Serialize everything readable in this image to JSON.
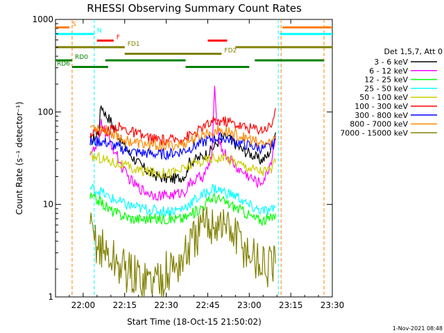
{
  "chart_data": {
    "type": "line",
    "title": "RHESSI Observing Summary Count Rates",
    "xlabel": "Start Time (18-Oct-15 21:50:02)",
    "ylabel": "Count Rate (s⁻¹ detector⁻¹)",
    "yscale": "log",
    "ylim": [
      1,
      1000
    ],
    "xlim_minutes": [
      0,
      100
    ],
    "x_ticks": [
      {
        "m": 10,
        "label": "22:00"
      },
      {
        "m": 25,
        "label": "22:15"
      },
      {
        "m": 40,
        "label": "22:30"
      },
      {
        "m": 55,
        "label": "22:45"
      },
      {
        "m": 70,
        "label": "23:00"
      },
      {
        "m": 85,
        "label": "23:15"
      },
      {
        "m": 100,
        "label": "23:30"
      }
    ],
    "y_ticks": [
      {
        "v": 1,
        "label": "1"
      },
      {
        "v": 10,
        "label": "10"
      },
      {
        "v": 100,
        "label": "100"
      },
      {
        "v": 1000,
        "label": "1000"
      }
    ],
    "legend_title": "Det 1,5,7, Att 0",
    "series": [
      {
        "name": "3 - 6 keV",
        "color": "#000000",
        "points": [
          [
            12.5,
            48
          ],
          [
            13.5,
            50
          ],
          [
            15.5,
            60
          ],
          [
            16.5,
            120
          ],
          [
            18,
            95
          ],
          [
            20,
            80
          ],
          [
            22,
            60
          ],
          [
            25,
            42
          ],
          [
            28,
            32
          ],
          [
            31,
            26
          ],
          [
            34,
            22
          ],
          [
            37,
            20
          ],
          [
            40,
            19
          ],
          [
            43,
            19
          ],
          [
            46,
            20
          ],
          [
            47.5,
            22
          ],
          [
            48,
            28
          ],
          [
            50,
            30
          ],
          [
            53,
            33
          ],
          [
            56,
            38
          ],
          [
            58,
            45
          ],
          [
            60,
            52
          ],
          [
            62,
            54
          ],
          [
            64,
            48
          ],
          [
            66,
            42
          ],
          [
            68,
            38
          ],
          [
            70,
            36
          ],
          [
            72,
            33
          ],
          [
            74,
            30
          ],
          [
            76,
            32
          ],
          [
            78,
            40
          ],
          [
            79.5,
            60
          ]
        ]
      },
      {
        "name": "6 - 12 keV",
        "color": "#ff00ff",
        "points": [
          [
            12.5,
            38
          ],
          [
            14,
            38
          ],
          [
            15.5,
            45
          ],
          [
            16.5,
            80
          ],
          [
            18,
            60
          ],
          [
            20,
            45
          ],
          [
            22,
            35
          ],
          [
            24,
            25
          ],
          [
            26,
            20
          ],
          [
            29,
            16
          ],
          [
            32,
            14
          ],
          [
            35,
            13
          ],
          [
            38,
            12.5
          ],
          [
            41,
            12.5
          ],
          [
            44,
            13
          ],
          [
            47,
            14
          ],
          [
            48,
            16
          ],
          [
            50,
            18
          ],
          [
            53,
            20
          ],
          [
            55,
            24
          ],
          [
            56.5,
            35
          ],
          [
            57.5,
            170
          ],
          [
            58.5,
            70
          ],
          [
            60,
            40
          ],
          [
            62,
            33
          ],
          [
            64,
            28
          ],
          [
            66,
            24
          ],
          [
            68,
            22
          ],
          [
            70,
            20
          ],
          [
            72,
            18
          ],
          [
            74,
            17
          ],
          [
            76,
            20
          ],
          [
            78,
            30
          ],
          [
            79.5,
            55
          ]
        ]
      },
      {
        "name": "12 - 25 keV",
        "color": "#00ff00",
        "points": [
          [
            12.5,
            12
          ],
          [
            16,
            11
          ],
          [
            19,
            9
          ],
          [
            22,
            8
          ],
          [
            25,
            7.5
          ],
          [
            28,
            7
          ],
          [
            31,
            7
          ],
          [
            34,
            7
          ],
          [
            37,
            7
          ],
          [
            40,
            7
          ],
          [
            43,
            7
          ],
          [
            46,
            7
          ],
          [
            48,
            7.5
          ],
          [
            51,
            8.5
          ],
          [
            54,
            10
          ],
          [
            57,
            12
          ],
          [
            60,
            11
          ],
          [
            63,
            10
          ],
          [
            66,
            9
          ],
          [
            69,
            8
          ],
          [
            72,
            7
          ],
          [
            75,
            6.8
          ],
          [
            78,
            7
          ],
          [
            79.5,
            8
          ]
        ]
      },
      {
        "name": "25 - 50 keV",
        "color": "#00ffff",
        "points": [
          [
            12.5,
            15
          ],
          [
            16,
            14
          ],
          [
            19,
            12
          ],
          [
            22,
            11
          ],
          [
            25,
            10
          ],
          [
            28,
            9.5
          ],
          [
            31,
            9
          ],
          [
            34,
            8.8
          ],
          [
            37,
            8.5
          ],
          [
            40,
            8.5
          ],
          [
            43,
            8.6
          ],
          [
            46,
            9
          ],
          [
            48,
            10
          ],
          [
            51,
            11.5
          ],
          [
            54,
            13
          ],
          [
            57,
            15
          ],
          [
            60,
            14
          ],
          [
            63,
            13
          ],
          [
            66,
            12
          ],
          [
            69,
            10
          ],
          [
            72,
            9
          ],
          [
            75,
            8.5
          ],
          [
            78,
            8.5
          ],
          [
            79.5,
            9.5
          ]
        ]
      },
      {
        "name": "50 - 100 keV",
        "color": "#cccc00",
        "points": [
          [
            12.5,
            33
          ],
          [
            16,
            32
          ],
          [
            19,
            30
          ],
          [
            22,
            28
          ],
          [
            25,
            26
          ],
          [
            28,
            24
          ],
          [
            31,
            23
          ],
          [
            34,
            22.5
          ],
          [
            37,
            22
          ],
          [
            40,
            22
          ],
          [
            43,
            22.5
          ],
          [
            46,
            24
          ],
          [
            48,
            26
          ],
          [
            51,
            28
          ],
          [
            54,
            30
          ],
          [
            57,
            32
          ],
          [
            60,
            32
          ],
          [
            63,
            31
          ],
          [
            66,
            28
          ],
          [
            69,
            26
          ],
          [
            72,
            24
          ],
          [
            75,
            23
          ],
          [
            78,
            24
          ],
          [
            79.5,
            28
          ]
        ]
      },
      {
        "name": "100 - 300 keV",
        "color": "#ff0000",
        "points": [
          [
            12.5,
            60
          ],
          [
            16,
            62
          ],
          [
            19,
            62
          ],
          [
            22,
            70
          ],
          [
            25,
            65
          ],
          [
            28,
            60
          ],
          [
            31,
            55
          ],
          [
            34,
            52
          ],
          [
            37,
            50
          ],
          [
            40,
            49
          ],
          [
            43,
            50
          ],
          [
            46,
            52
          ],
          [
            48,
            55
          ],
          [
            51,
            60
          ],
          [
            54,
            70
          ],
          [
            57,
            78
          ],
          [
            60,
            80
          ],
          [
            63,
            78
          ],
          [
            66,
            72
          ],
          [
            69,
            68
          ],
          [
            72,
            66
          ],
          [
            75,
            65
          ],
          [
            78,
            72
          ],
          [
            79.5,
            110
          ]
        ]
      },
      {
        "name": "300 - 800 keV",
        "color": "#0000ff",
        "points": [
          [
            12.5,
            47
          ],
          [
            16,
            48
          ],
          [
            19,
            46
          ],
          [
            22,
            42
          ],
          [
            25,
            39
          ],
          [
            28,
            37
          ],
          [
            31,
            36
          ],
          [
            34,
            35.5
          ],
          [
            37,
            35
          ],
          [
            40,
            35
          ],
          [
            43,
            36
          ],
          [
            46,
            38
          ],
          [
            48,
            40
          ],
          [
            51,
            44
          ],
          [
            54,
            48
          ],
          [
            57,
            52
          ],
          [
            60,
            53
          ],
          [
            63,
            50
          ],
          [
            66,
            47
          ],
          [
            69,
            44
          ],
          [
            72,
            42
          ],
          [
            75,
            40
          ],
          [
            78,
            42
          ],
          [
            79.5,
            50
          ]
        ]
      },
      {
        "name": "800 - 7000 keV",
        "color": "#ff8800",
        "points": [
          [
            12.5,
            70
          ],
          [
            16,
            68
          ],
          [
            19,
            62
          ],
          [
            22,
            56
          ],
          [
            25,
            50
          ],
          [
            28,
            47
          ],
          [
            31,
            45
          ],
          [
            34,
            44
          ],
          [
            37,
            43.5
          ],
          [
            40,
            43
          ],
          [
            43,
            43.5
          ],
          [
            46,
            45
          ],
          [
            48,
            48
          ],
          [
            51,
            53
          ],
          [
            54,
            58
          ],
          [
            57,
            62
          ],
          [
            60,
            63
          ],
          [
            63,
            60
          ],
          [
            66,
            56
          ],
          [
            69,
            52
          ],
          [
            72,
            48
          ],
          [
            75,
            45
          ],
          [
            78,
            46
          ],
          [
            79.5,
            55
          ]
        ]
      },
      {
        "name": "7000 - 15000 keV",
        "color": "#808000",
        "points": [
          [
            12.5,
            5
          ],
          [
            16,
            3.5
          ],
          [
            19,
            2.8
          ],
          [
            22,
            2.3
          ],
          [
            25,
            2.0
          ],
          [
            28,
            1.7
          ],
          [
            31,
            1.6
          ],
          [
            34,
            1.5
          ],
          [
            37,
            1.6
          ],
          [
            40,
            1.8
          ],
          [
            43,
            2.1
          ],
          [
            46,
            2.5
          ],
          [
            48,
            3.3
          ],
          [
            51,
            4.5
          ],
          [
            54,
            5.8
          ],
          [
            57,
            6.5
          ],
          [
            60,
            6.2
          ],
          [
            63,
            5.2
          ],
          [
            66,
            4.2
          ],
          [
            69,
            3.2
          ],
          [
            72,
            2.6
          ],
          [
            75,
            2.2
          ],
          [
            78,
            2.0
          ],
          [
            79.5,
            2.3
          ]
        ]
      }
    ],
    "flag_lanes": [
      {
        "label": "S",
        "color": "#ff8000",
        "row": 1,
        "segments": [
          [
            0,
            5
          ],
          [
            82,
            100
          ]
        ]
      },
      {
        "label": "N",
        "color": "#00ffff",
        "row": 2,
        "segments": [
          [
            0,
            14
          ],
          [
            81,
            100
          ]
        ]
      },
      {
        "label": "F",
        "color": "#ff0000",
        "row": 3,
        "segments": [
          [
            15,
            21
          ],
          [
            55,
            62
          ]
        ]
      },
      {
        "label": "FD1",
        "color": "#808000",
        "row": 4,
        "segments": [
          [
            0,
            25
          ],
          [
            65,
            100
          ]
        ]
      },
      {
        "label": "FD2",
        "color": "#808000",
        "row": 5,
        "segments": [
          [
            25,
            60
          ]
        ]
      },
      {
        "label": "RD0",
        "color": "#008000",
        "row": 6,
        "segments": [
          [
            0,
            6
          ],
          [
            18,
            47
          ],
          [
            72,
            97
          ]
        ]
      },
      {
        "label": "RD6",
        "color": "#008000",
        "row": 7,
        "segments": [
          [
            6,
            19
          ],
          [
            47,
            70
          ]
        ]
      }
    ],
    "vertical_markers": [
      {
        "m": 6,
        "color": "#ff8000"
      },
      {
        "m": 14,
        "color": "#00ffff"
      },
      {
        "m": 80.5,
        "color": "#00ffff"
      },
      {
        "m": 81.5,
        "color": "#ff8000"
      },
      {
        "m": 97,
        "color": "#ff8000"
      }
    ],
    "stamp": "1-Nov-2021 08:48"
  }
}
